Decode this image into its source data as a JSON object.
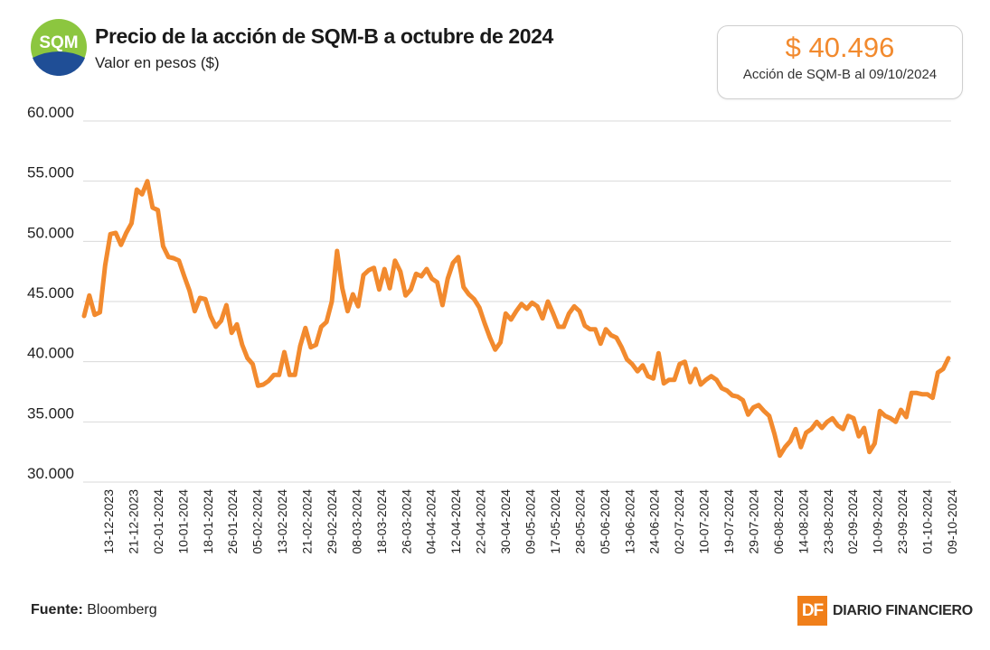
{
  "header": {
    "logo_text": "SQM",
    "title": "Precio de la acción de SQM-B a octubre de 2024",
    "subtitle": "Valor en pesos ($)"
  },
  "price_box": {
    "value": "$ 40.496",
    "label": "Acción de SQM-B al 09/10/2024"
  },
  "footer": {
    "source_label": "Fuente:",
    "source_value": "Bloomberg",
    "brand_mark": "DF",
    "brand_name": "DIARIO FINANCIERO"
  },
  "colors": {
    "line": "#f28a2e",
    "accent": "#f07f1a",
    "logo_green": "#8cc63f",
    "logo_blue": "#1f4e96"
  },
  "chart_data": {
    "type": "line",
    "title": "Precio de la acción de SQM-B a octubre de 2024",
    "ylabel": "Valor en pesos ($)",
    "ylim": [
      30000,
      60000
    ],
    "y_ticks": [
      30000,
      35000,
      40000,
      45000,
      50000,
      55000,
      60000
    ],
    "y_tick_labels": [
      "30.000",
      "35.000",
      "40.000",
      "45.000",
      "50.000",
      "55.000",
      "60.000"
    ],
    "x_tick_labels": [
      "13-12-2023",
      "21-12-2023",
      "02-01-2024",
      "10-01-2024",
      "18-01-2024",
      "26-01-2024",
      "05-02-2024",
      "13-02-2024",
      "21-02-2024",
      "29-02-2024",
      "08-03-2024",
      "18-03-2024",
      "26-03-2024",
      "04-04-2024",
      "12-04-2024",
      "22-04-2024",
      "30-04-2024",
      "09-05-2024",
      "17-05-2024",
      "28-05-2024",
      "05-06-2024",
      "13-06-2024",
      "24-06-2024",
      "02-07-2024",
      "10-07-2024",
      "19-07-2024",
      "29-07-2024",
      "06-08-2024",
      "14-08-2024",
      "23-08-2024",
      "02-09-2024",
      "10-09-2024",
      "23-09-2024",
      "01-10-2024",
      "09-10-2024"
    ],
    "grid": true,
    "series": [
      {
        "values": [
          43800,
          45500,
          43900,
          44100,
          48000,
          50600,
          50700,
          49700,
          50700,
          51500,
          54300,
          53900,
          55000,
          52800,
          52600,
          49600,
          48700,
          48600,
          48400,
          47100,
          45900,
          44200,
          45300,
          45200,
          43800,
          42900,
          43400,
          44700,
          42400,
          43100,
          41400,
          40300,
          39800,
          38000,
          38100,
          38400,
          38900,
          38900,
          40800,
          38900,
          38900,
          41300,
          42800,
          41200,
          41400,
          42900,
          43300,
          45000,
          49200,
          46100,
          44200,
          45600,
          44600,
          47200,
          47600,
          47800,
          46000,
          47700,
          46100,
          48400,
          47500,
          45500,
          46000,
          47300,
          47100,
          47700,
          46900,
          46600,
          44700,
          46900,
          48200,
          48700,
          46200,
          45600,
          45200,
          44500,
          43200,
          42000,
          41000,
          41600,
          44000,
          43500,
          44200,
          44800,
          44400,
          44900,
          44600,
          43600,
          45000,
          44000,
          42900,
          42900,
          44000,
          44600,
          44200,
          43000,
          42700,
          42700,
          41500,
          42700,
          42200,
          42000,
          41200,
          40200,
          39800,
          39200,
          39700,
          38800,
          38600,
          40700,
          38200,
          38500,
          38500,
          39800,
          40000,
          38300,
          39400,
          38100,
          38500,
          38800,
          38500,
          37800,
          37600,
          37200,
          37100,
          36800,
          35600,
          36200,
          36400,
          35900,
          35500,
          34000,
          32200,
          32900,
          33400,
          34400,
          32900,
          34100,
          34400,
          35000,
          34500,
          35000,
          35300,
          34700,
          34400,
          35500,
          35300,
          33800,
          34500,
          32500,
          33200,
          35900,
          35500,
          35300,
          35000,
          36000,
          35400,
          37400,
          37400,
          37300,
          37300,
          37000,
          39100,
          39400,
          40300
        ]
      }
    ]
  }
}
